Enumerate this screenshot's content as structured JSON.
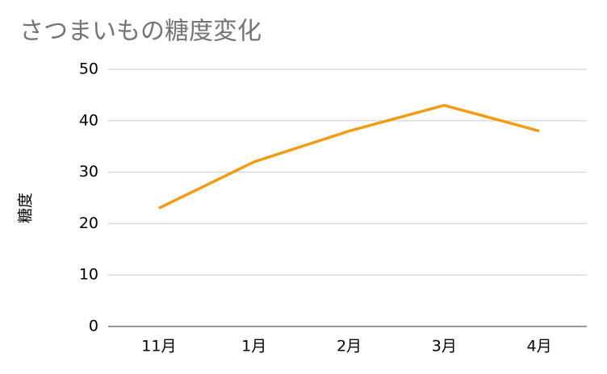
{
  "chart_data": {
    "type": "line",
    "title": "さつまいもの糖度変化",
    "y_label": "糖度",
    "categories": [
      "11月",
      "1月",
      "2月",
      "3月",
      "4月"
    ],
    "series": [
      {
        "name": "糖度",
        "color": "#f39c12",
        "values": [
          23,
          32,
          38,
          43,
          38
        ]
      }
    ],
    "ylim": [
      0,
      50
    ],
    "yticks": [
      0,
      10,
      20,
      30,
      40,
      50
    ],
    "grid": true
  }
}
